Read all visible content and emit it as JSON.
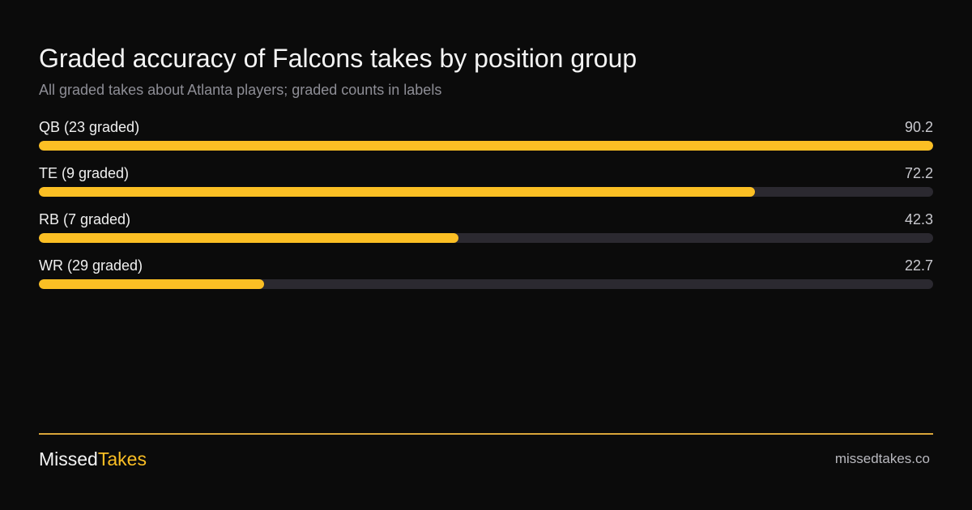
{
  "header": {
    "title": "Graded accuracy of Falcons takes by position group",
    "subtitle": "All graded takes about Atlanta players; graded counts in labels"
  },
  "chart_data": {
    "type": "bar",
    "orientation": "horizontal",
    "title": "Graded accuracy of Falcons takes by position group",
    "subtitle": "All graded takes about Atlanta players; graded counts in labels",
    "categories": [
      "QB (23 graded)",
      "TE (9 graded)",
      "RB (7 graded)",
      "WR (29 graded)"
    ],
    "values": [
      90.2,
      72.2,
      42.3,
      22.7
    ],
    "value_labels": [
      "90.2",
      "72.2",
      "42.3",
      "22.7"
    ],
    "xlim": [
      0,
      90.2
    ],
    "grid": false,
    "legend": "none",
    "colors": {
      "bar": "#fbbf24",
      "track": "#2b2930"
    }
  },
  "footer": {
    "brand_part1": "Missed",
    "brand_part2": "Takes",
    "site": "missedtakes.co"
  },
  "colors": {
    "background": "#0b0b0b",
    "accent": "#fbbf24",
    "divider": "#d9a53a"
  }
}
